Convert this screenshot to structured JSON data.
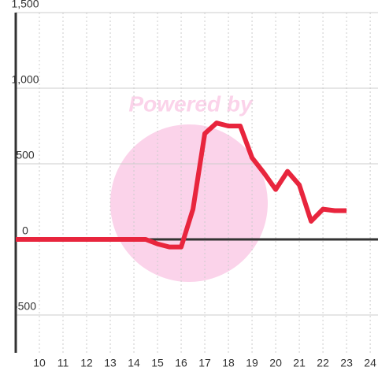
{
  "chart_data": {
    "type": "line",
    "watermark": "Powered by",
    "x": [
      9,
      9.5,
      10,
      10.5,
      11,
      11.5,
      12,
      12.5,
      13,
      13.5,
      14,
      14.5,
      15,
      15.5,
      16,
      16.5,
      17,
      17.5,
      18,
      18.5,
      19,
      19.5,
      20,
      20.5,
      21,
      21.5,
      22,
      22.5,
      23
    ],
    "series": [
      {
        "color": "#e8253d",
        "values": [
          0,
          0,
          0,
          0,
          0,
          0,
          0,
          0,
          0,
          0,
          0,
          0,
          -30,
          -50,
          -50,
          200,
          700,
          770,
          750,
          750,
          540,
          440,
          330,
          450,
          360,
          120,
          200,
          190,
          190
        ]
      }
    ],
    "xlim": [
      9,
      24.33
    ],
    "xticks": [
      10,
      11,
      12,
      13,
      14,
      15,
      16,
      17,
      18,
      19,
      20,
      21,
      22,
      23,
      24
    ],
    "ylim": [
      -750,
      1500
    ],
    "yticks": [
      {
        "value": -500,
        "label": "-500"
      },
      0,
      500,
      {
        "value": 1000,
        "label": "1,000"
      },
      {
        "value": 1500,
        "label": "1,500"
      }
    ],
    "grid": true
  }
}
